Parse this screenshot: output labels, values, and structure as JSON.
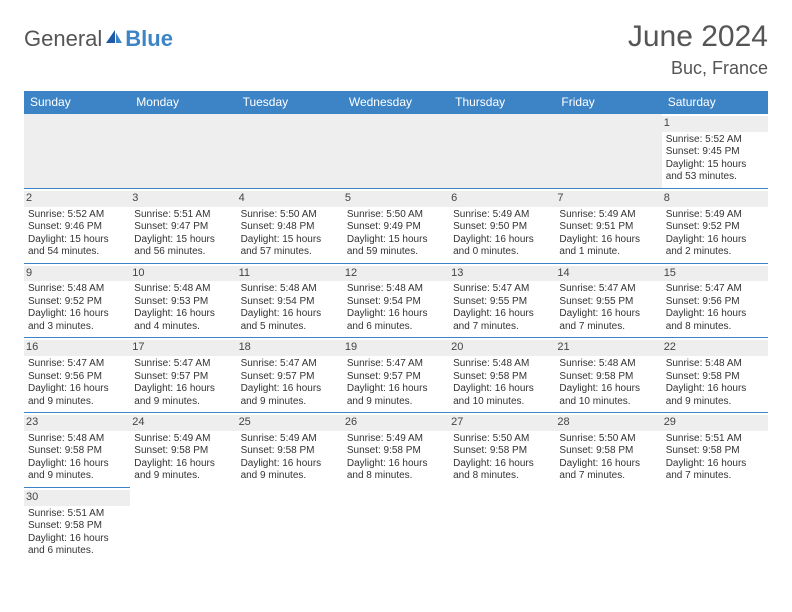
{
  "brand": {
    "part1": "General",
    "part2": "Blue"
  },
  "title": {
    "month": "June 2024",
    "location": "Buc, France"
  },
  "header_bg": "#3d84c6",
  "daynum_bg": "#eeeeee",
  "border_color": "#3d84c6",
  "days": [
    "Sunday",
    "Monday",
    "Tuesday",
    "Wednesday",
    "Thursday",
    "Friday",
    "Saturday"
  ],
  "weeks": [
    [
      null,
      null,
      null,
      null,
      null,
      null,
      {
        "n": "1",
        "sr": "Sunrise: 5:52 AM",
        "ss": "Sunset: 9:45 PM",
        "dl1": "Daylight: 15 hours",
        "dl2": "and 53 minutes."
      }
    ],
    [
      {
        "n": "2",
        "sr": "Sunrise: 5:52 AM",
        "ss": "Sunset: 9:46 PM",
        "dl1": "Daylight: 15 hours",
        "dl2": "and 54 minutes."
      },
      {
        "n": "3",
        "sr": "Sunrise: 5:51 AM",
        "ss": "Sunset: 9:47 PM",
        "dl1": "Daylight: 15 hours",
        "dl2": "and 56 minutes."
      },
      {
        "n": "4",
        "sr": "Sunrise: 5:50 AM",
        "ss": "Sunset: 9:48 PM",
        "dl1": "Daylight: 15 hours",
        "dl2": "and 57 minutes."
      },
      {
        "n": "5",
        "sr": "Sunrise: 5:50 AM",
        "ss": "Sunset: 9:49 PM",
        "dl1": "Daylight: 15 hours",
        "dl2": "and 59 minutes."
      },
      {
        "n": "6",
        "sr": "Sunrise: 5:49 AM",
        "ss": "Sunset: 9:50 PM",
        "dl1": "Daylight: 16 hours",
        "dl2": "and 0 minutes."
      },
      {
        "n": "7",
        "sr": "Sunrise: 5:49 AM",
        "ss": "Sunset: 9:51 PM",
        "dl1": "Daylight: 16 hours",
        "dl2": "and 1 minute."
      },
      {
        "n": "8",
        "sr": "Sunrise: 5:49 AM",
        "ss": "Sunset: 9:52 PM",
        "dl1": "Daylight: 16 hours",
        "dl2": "and 2 minutes."
      }
    ],
    [
      {
        "n": "9",
        "sr": "Sunrise: 5:48 AM",
        "ss": "Sunset: 9:52 PM",
        "dl1": "Daylight: 16 hours",
        "dl2": "and 3 minutes."
      },
      {
        "n": "10",
        "sr": "Sunrise: 5:48 AM",
        "ss": "Sunset: 9:53 PM",
        "dl1": "Daylight: 16 hours",
        "dl2": "and 4 minutes."
      },
      {
        "n": "11",
        "sr": "Sunrise: 5:48 AM",
        "ss": "Sunset: 9:54 PM",
        "dl1": "Daylight: 16 hours",
        "dl2": "and 5 minutes."
      },
      {
        "n": "12",
        "sr": "Sunrise: 5:48 AM",
        "ss": "Sunset: 9:54 PM",
        "dl1": "Daylight: 16 hours",
        "dl2": "and 6 minutes."
      },
      {
        "n": "13",
        "sr": "Sunrise: 5:47 AM",
        "ss": "Sunset: 9:55 PM",
        "dl1": "Daylight: 16 hours",
        "dl2": "and 7 minutes."
      },
      {
        "n": "14",
        "sr": "Sunrise: 5:47 AM",
        "ss": "Sunset: 9:55 PM",
        "dl1": "Daylight: 16 hours",
        "dl2": "and 7 minutes."
      },
      {
        "n": "15",
        "sr": "Sunrise: 5:47 AM",
        "ss": "Sunset: 9:56 PM",
        "dl1": "Daylight: 16 hours",
        "dl2": "and 8 minutes."
      }
    ],
    [
      {
        "n": "16",
        "sr": "Sunrise: 5:47 AM",
        "ss": "Sunset: 9:56 PM",
        "dl1": "Daylight: 16 hours",
        "dl2": "and 9 minutes."
      },
      {
        "n": "17",
        "sr": "Sunrise: 5:47 AM",
        "ss": "Sunset: 9:57 PM",
        "dl1": "Daylight: 16 hours",
        "dl2": "and 9 minutes."
      },
      {
        "n": "18",
        "sr": "Sunrise: 5:47 AM",
        "ss": "Sunset: 9:57 PM",
        "dl1": "Daylight: 16 hours",
        "dl2": "and 9 minutes."
      },
      {
        "n": "19",
        "sr": "Sunrise: 5:47 AM",
        "ss": "Sunset: 9:57 PM",
        "dl1": "Daylight: 16 hours",
        "dl2": "and 9 minutes."
      },
      {
        "n": "20",
        "sr": "Sunrise: 5:48 AM",
        "ss": "Sunset: 9:58 PM",
        "dl1": "Daylight: 16 hours",
        "dl2": "and 10 minutes."
      },
      {
        "n": "21",
        "sr": "Sunrise: 5:48 AM",
        "ss": "Sunset: 9:58 PM",
        "dl1": "Daylight: 16 hours",
        "dl2": "and 10 minutes."
      },
      {
        "n": "22",
        "sr": "Sunrise: 5:48 AM",
        "ss": "Sunset: 9:58 PM",
        "dl1": "Daylight: 16 hours",
        "dl2": "and 9 minutes."
      }
    ],
    [
      {
        "n": "23",
        "sr": "Sunrise: 5:48 AM",
        "ss": "Sunset: 9:58 PM",
        "dl1": "Daylight: 16 hours",
        "dl2": "and 9 minutes."
      },
      {
        "n": "24",
        "sr": "Sunrise: 5:49 AM",
        "ss": "Sunset: 9:58 PM",
        "dl1": "Daylight: 16 hours",
        "dl2": "and 9 minutes."
      },
      {
        "n": "25",
        "sr": "Sunrise: 5:49 AM",
        "ss": "Sunset: 9:58 PM",
        "dl1": "Daylight: 16 hours",
        "dl2": "and 9 minutes."
      },
      {
        "n": "26",
        "sr": "Sunrise: 5:49 AM",
        "ss": "Sunset: 9:58 PM",
        "dl1": "Daylight: 16 hours",
        "dl2": "and 8 minutes."
      },
      {
        "n": "27",
        "sr": "Sunrise: 5:50 AM",
        "ss": "Sunset: 9:58 PM",
        "dl1": "Daylight: 16 hours",
        "dl2": "and 8 minutes."
      },
      {
        "n": "28",
        "sr": "Sunrise: 5:50 AM",
        "ss": "Sunset: 9:58 PM",
        "dl1": "Daylight: 16 hours",
        "dl2": "and 7 minutes."
      },
      {
        "n": "29",
        "sr": "Sunrise: 5:51 AM",
        "ss": "Sunset: 9:58 PM",
        "dl1": "Daylight: 16 hours",
        "dl2": "and 7 minutes."
      }
    ],
    [
      {
        "n": "30",
        "sr": "Sunrise: 5:51 AM",
        "ss": "Sunset: 9:58 PM",
        "dl1": "Daylight: 16 hours",
        "dl2": "and 6 minutes."
      },
      null,
      null,
      null,
      null,
      null,
      null
    ]
  ]
}
